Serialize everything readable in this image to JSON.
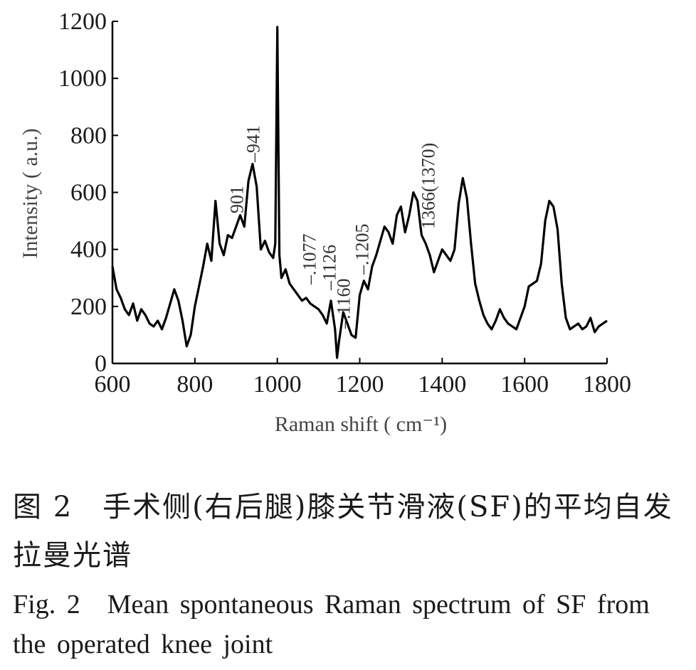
{
  "chart_data": {
    "type": "line",
    "xlabel": "Raman  shift ( cm⁻¹)",
    "ylabel": "Intensity ( a.u.)",
    "xlim": [
      600,
      1800
    ],
    "ylim": [
      0,
      1200
    ],
    "xticks": [
      600,
      800,
      1000,
      1200,
      1400,
      1600,
      1800
    ],
    "yticks": [
      0,
      200,
      400,
      600,
      800,
      1000,
      1200
    ],
    "grid": false,
    "series": [
      {
        "color": "#000000",
        "x": [
          600,
          610,
          620,
          630,
          640,
          650,
          660,
          670,
          680,
          690,
          700,
          710,
          720,
          730,
          740,
          750,
          760,
          770,
          780,
          790,
          800,
          810,
          820,
          830,
          840,
          850,
          860,
          870,
          880,
          890,
          900,
          910,
          920,
          930,
          940,
          950,
          960,
          970,
          980,
          990,
          995,
          1000,
          1005,
          1010,
          1020,
          1030,
          1040,
          1050,
          1060,
          1070,
          1080,
          1090,
          1100,
          1110,
          1120,
          1130,
          1140,
          1145,
          1150,
          1160,
          1170,
          1180,
          1190,
          1200,
          1210,
          1220,
          1230,
          1240,
          1250,
          1260,
          1270,
          1280,
          1290,
          1300,
          1310,
          1320,
          1330,
          1340,
          1350,
          1360,
          1370,
          1380,
          1390,
          1400,
          1410,
          1420,
          1430,
          1440,
          1450,
          1460,
          1470,
          1480,
          1490,
          1500,
          1510,
          1520,
          1530,
          1540,
          1550,
          1560,
          1570,
          1580,
          1590,
          1600,
          1610,
          1620,
          1630,
          1640,
          1650,
          1660,
          1670,
          1680,
          1690,
          1700,
          1710,
          1720,
          1730,
          1740,
          1750,
          1760,
          1770,
          1780,
          1790,
          1800
        ],
        "y": [
          340,
          260,
          230,
          190,
          170,
          210,
          150,
          190,
          170,
          140,
          130,
          150,
          120,
          160,
          210,
          260,
          220,
          150,
          60,
          100,
          200,
          270,
          340,
          420,
          360,
          570,
          420,
          380,
          450,
          440,
          480,
          520,
          480,
          640,
          700,
          620,
          400,
          430,
          390,
          370,
          420,
          1180,
          380,
          300,
          330,
          280,
          260,
          240,
          220,
          230,
          210,
          200,
          190,
          170,
          140,
          220,
          120,
          20,
          80,
          180,
          140,
          100,
          90,
          240,
          290,
          260,
          340,
          380,
          430,
          480,
          460,
          420,
          520,
          550,
          460,
          520,
          600,
          570,
          450,
          420,
          380,
          320,
          360,
          400,
          380,
          360,
          400,
          560,
          650,
          580,
          420,
          280,
          220,
          170,
          140,
          120,
          150,
          190,
          160,
          140,
          130,
          120,
          160,
          200,
          270,
          280,
          290,
          350,
          500,
          570,
          550,
          470,
          280,
          160,
          120,
          130,
          140,
          120,
          130,
          160,
          110,
          130,
          140,
          150
        ]
      }
    ],
    "annotations": [
      {
        "text": "901",
        "x": 901
      },
      {
        "text": "–941",
        "x": 941
      },
      {
        "text": "–.1077",
        "x": 1077
      },
      {
        "text": "–1126",
        "x": 1126
      },
      {
        "text": "–.1160",
        "x": 1160
      },
      {
        "text": "–.1205",
        "x": 1205
      },
      {
        "text": "1366(1370)",
        "x": 1366
      }
    ]
  },
  "caption": {
    "cn_line1": "图 2　手术侧(右后腿)膝关节滑液(SF)的平均自发",
    "cn_line2": "拉曼光谱",
    "en_line1": "Fig. 2　Mean  spontaneous  Raman  spectrum  of  SF  from",
    "en_line2": "the operated knee joint"
  }
}
